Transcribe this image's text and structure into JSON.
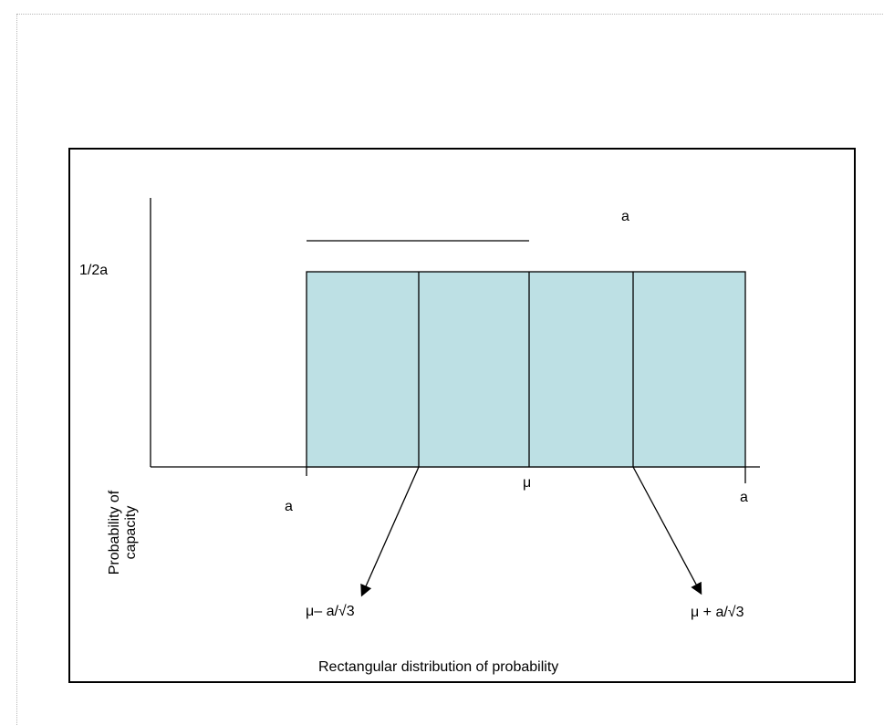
{
  "diagram": {
    "caption": "Rectangular distribution of probability",
    "y_axis_label_line1": "Probability of",
    "y_axis_label_line2": "capacity",
    "height_label": "1/2a",
    "top_width_label": "a",
    "left_bound_label": "a",
    "center_label": "μ",
    "right_bound_label": "a",
    "lower_arrow_label": "μ– a/√3",
    "upper_arrow_label": "μ + a/√3",
    "colors": {
      "fill": "#bde0e4",
      "stroke": "#000000"
    }
  }
}
